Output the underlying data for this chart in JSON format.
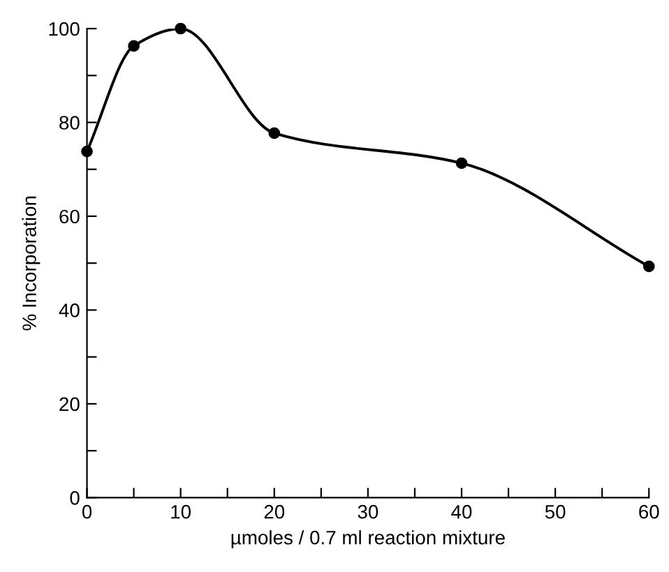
{
  "chart_data": {
    "type": "line",
    "xlabel": "µmoles / 0.7 ml reaction mixture",
    "ylabel": "% Incorporation",
    "x": [
      0,
      5,
      10,
      20,
      40,
      60
    ],
    "series": [
      {
        "color": "#000000",
        "values": [
          73.8,
          96.3,
          100,
          77.7,
          71.3,
          49.3
        ]
      }
    ],
    "marker": "circle",
    "line_style": "solid",
    "grid": false,
    "legend": false,
    "xlim": [
      0,
      60
    ],
    "ylim": [
      0,
      100
    ],
    "xticks": [
      0,
      {
        "value": 5,
        "label": null
      },
      10,
      {
        "value": 15,
        "label": null
      },
      20,
      {
        "value": 25,
        "label": null
      },
      30,
      {
        "value": 35,
        "label": null
      },
      40,
      {
        "value": 45,
        "label": null
      },
      50,
      {
        "value": 55,
        "label": null
      },
      60
    ],
    "yticks": [
      0,
      {
        "value": 10,
        "label": null
      },
      20,
      {
        "value": 30,
        "label": null
      },
      40,
      {
        "value": 50,
        "label": null
      },
      60,
      {
        "value": 70,
        "label": null
      },
      80,
      {
        "value": 90,
        "label": null
      },
      100
    ]
  }
}
